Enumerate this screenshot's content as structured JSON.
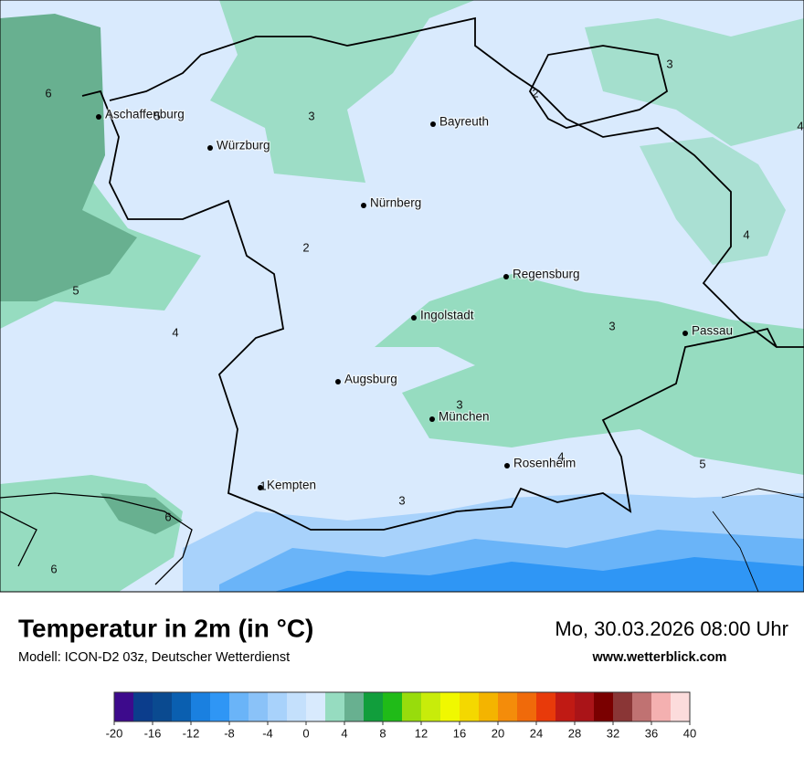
{
  "header": {
    "title": "Temperatur in 2m (in °C)",
    "model": "Modell: ICON-D2 03z, Deutscher Wetterdienst",
    "datetime": "Mo, 30.03.2026 08:00 Uhr",
    "website": "www.wetterblick.com"
  },
  "map": {
    "cities": [
      "Aschaffenburg",
      "Würzburg",
      "Bayreuth",
      "Nürnberg",
      "Regensburg",
      "Ingolstadt",
      "Passau",
      "Augsburg",
      "München",
      "Rosenheim",
      "Kempten"
    ],
    "labels": [
      6,
      5,
      3,
      3,
      2,
      4,
      2,
      5,
      4,
      4,
      3,
      3,
      4,
      5,
      3,
      6,
      6,
      1
    ]
  },
  "legend": {
    "ticks": [
      -20,
      -16,
      -12,
      -8,
      -4,
      0,
      4,
      8,
      12,
      16,
      20,
      24,
      28,
      32,
      36,
      40
    ],
    "colors": [
      "#3d0a8c",
      "#0b3d8c",
      "#0a4a90",
      "#0a5fb0",
      "#1a80e0",
      "#2f96f5",
      "#6ab4f8",
      "#8ac2f8",
      "#a8d2fb",
      "#c4e0fc",
      "#d8eafd",
      "#96dcc0",
      "#68b090",
      "#119e3c",
      "#20bb18",
      "#98dc0c",
      "#c8ec0a",
      "#f0f800",
      "#f4d800",
      "#f4b400",
      "#f48c0a",
      "#f06a0a",
      "#e83a0a",
      "#c01a14",
      "#aa1418",
      "#7a0000",
      "#8a3636",
      "#c07272",
      "#f4b0b0",
      "#fcdcdc"
    ]
  }
}
